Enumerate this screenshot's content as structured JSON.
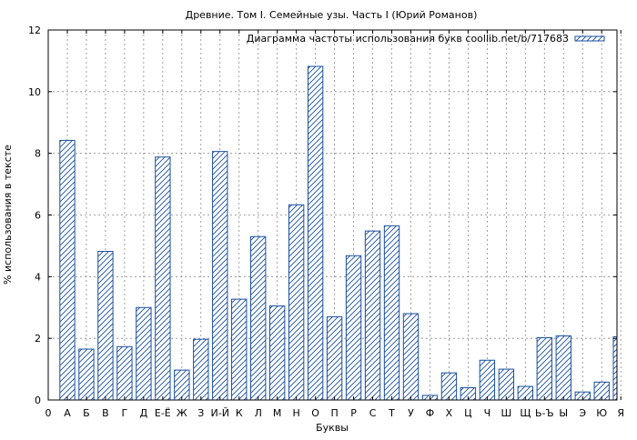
{
  "chart_data": {
    "type": "bar",
    "title": "Древние. Том I. Семейные узы. Часть I (Юрий Романов)",
    "xlabel": "Буквы",
    "ylabel": "% использования в тексте",
    "legend_label": "Диаграмма частоты использования букв coollib.net/b/717683",
    "legend_position": "top-right",
    "grid": true,
    "hatch": "diagonal",
    "bar_color": "#1a4fa0",
    "ylim": [
      0,
      12
    ],
    "yticks": [
      0,
      2,
      4,
      6,
      8,
      10,
      12
    ],
    "x_origin_label": "0",
    "categories": [
      "А",
      "Б",
      "В",
      "Г",
      "Д",
      "Е-Ё",
      "Ж",
      "З",
      "И-Й",
      "К",
      "Л",
      "М",
      "Н",
      "О",
      "П",
      "Р",
      "С",
      "Т",
      "У",
      "Ф",
      "Х",
      "Ц",
      "Ч",
      "Ш",
      "Щ",
      "Ь-Ъ",
      "Ы",
      "Э",
      "Ю",
      "Я"
    ],
    "values": [
      8.42,
      1.65,
      4.82,
      1.73,
      3.0,
      7.88,
      0.97,
      1.97,
      8.06,
      3.27,
      5.3,
      3.05,
      6.33,
      10.82,
      2.7,
      4.68,
      5.48,
      5.65,
      2.8,
      0.15,
      0.88,
      0.4,
      1.29,
      1.0,
      0.44,
      2.02,
      2.08,
      0.26,
      0.58,
      2.05
    ]
  }
}
